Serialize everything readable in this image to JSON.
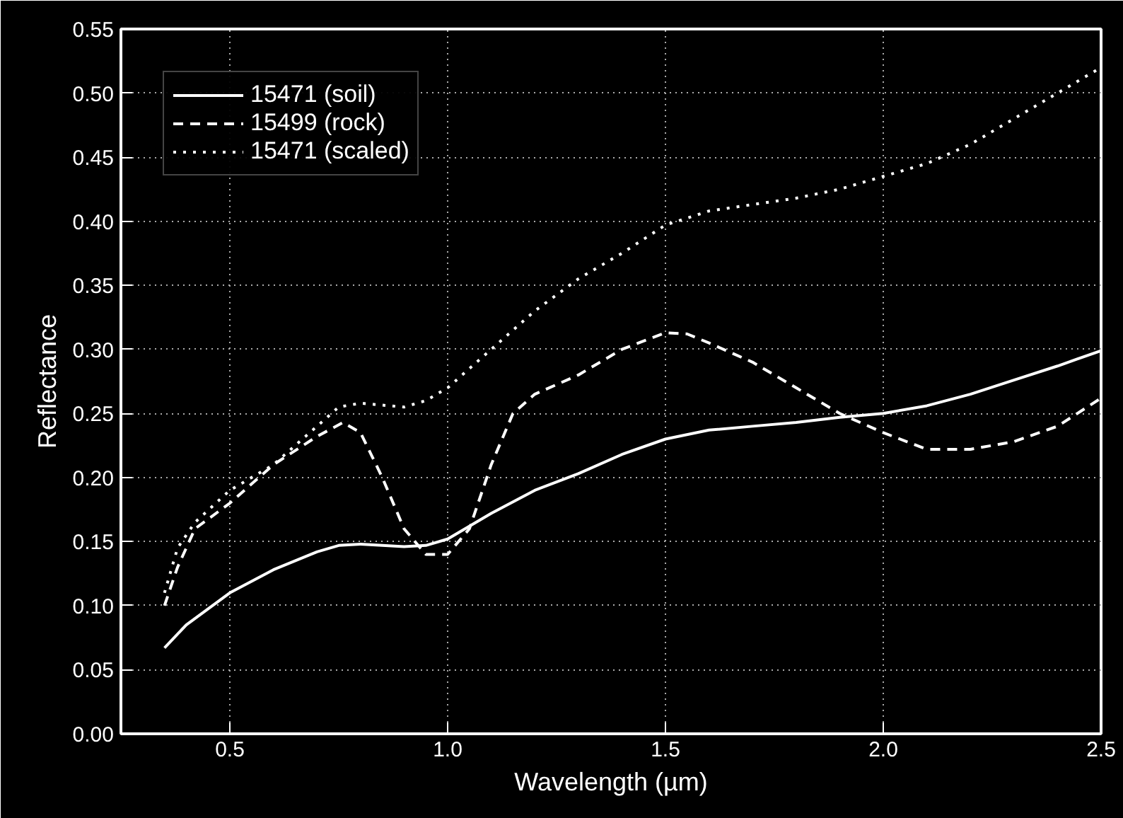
{
  "chart_data": {
    "type": "line",
    "xlabel": "Wavelength (µm)",
    "ylabel": "Reflectance",
    "xlim": [
      0.25,
      2.5
    ],
    "xticks": [
      {
        "value": 0.5,
        "label": "0.5"
      },
      {
        "value": 1.0,
        "label": "1.0"
      },
      {
        "value": 1.5,
        "label": "1.5"
      },
      {
        "value": 2.0,
        "label": "2.0"
      },
      {
        "value": 2.5,
        "label": "2.5"
      }
    ],
    "ylim": [
      0,
      0.55
    ],
    "yticks": [
      {
        "value": 0,
        "label": "0.00"
      },
      {
        "value": 0.05,
        "label": "0.05"
      },
      {
        "value": 0.1,
        "label": "0.10"
      },
      {
        "value": 0.15,
        "label": "0.15"
      },
      {
        "value": 0.2,
        "label": "0.20"
      },
      {
        "value": 0.25,
        "label": "0.25"
      },
      {
        "value": 0.3,
        "label": "0.30"
      },
      {
        "value": 0.35,
        "label": "0.35"
      },
      {
        "value": 0.4,
        "label": "0.40"
      },
      {
        "value": 0.45,
        "label": "0.45"
      },
      {
        "value": 0.5,
        "label": "0.50"
      },
      {
        "value": 0.55,
        "label": "0.55"
      }
    ],
    "grid": true,
    "legend": "top left",
    "series": [
      {
        "name": "15471 (soil)",
        "color": "#ffffff",
        "line_style": "solid",
        "x": [
          0.35,
          0.4,
          0.5,
          0.6,
          0.7,
          0.75,
          0.8,
          0.9,
          0.95,
          1.0,
          1.1,
          1.2,
          1.3,
          1.4,
          1.5,
          1.6,
          1.7,
          1.8,
          1.9,
          2.0,
          2.1,
          2.2,
          2.3,
          2.4,
          2.5
        ],
        "values": [
          0.067,
          0.085,
          0.11,
          0.128,
          0.142,
          0.147,
          0.148,
          0.146,
          0.147,
          0.152,
          0.172,
          0.19,
          0.203,
          0.218,
          0.23,
          0.237,
          0.24,
          0.243,
          0.247,
          0.25,
          0.256,
          0.265,
          0.276,
          0.287,
          0.299
        ]
      },
      {
        "name": "15499 (rock)",
        "color": "#ffffff",
        "line_style": "dashed",
        "x": [
          0.35,
          0.38,
          0.42,
          0.5,
          0.6,
          0.7,
          0.76,
          0.8,
          0.85,
          0.9,
          0.95,
          1.0,
          1.05,
          1.1,
          1.15,
          1.2,
          1.3,
          1.4,
          1.5,
          1.55,
          1.6,
          1.7,
          1.8,
          1.9,
          2.0,
          2.1,
          2.2,
          2.3,
          2.4,
          2.5
        ],
        "values": [
          0.1,
          0.13,
          0.16,
          0.18,
          0.21,
          0.232,
          0.243,
          0.235,
          0.2,
          0.16,
          0.14,
          0.14,
          0.16,
          0.21,
          0.25,
          0.265,
          0.28,
          0.3,
          0.313,
          0.312,
          0.305,
          0.29,
          0.27,
          0.25,
          0.235,
          0.222,
          0.222,
          0.228,
          0.24,
          0.262
        ]
      },
      {
        "name": "15471 (scaled)",
        "color": "#ffffff",
        "line_style": "dotted",
        "x": [
          0.35,
          0.38,
          0.42,
          0.5,
          0.6,
          0.7,
          0.75,
          0.8,
          0.9,
          0.95,
          1.0,
          1.1,
          1.2,
          1.3,
          1.4,
          1.5,
          1.6,
          1.7,
          1.8,
          1.9,
          2.0,
          2.1,
          2.2,
          2.3,
          2.4,
          2.5
        ],
        "values": [
          0.11,
          0.145,
          0.165,
          0.19,
          0.21,
          0.24,
          0.255,
          0.258,
          0.255,
          0.26,
          0.27,
          0.3,
          0.33,
          0.355,
          0.375,
          0.397,
          0.408,
          0.413,
          0.418,
          0.425,
          0.435,
          0.445,
          0.46,
          0.48,
          0.5,
          0.52
        ]
      }
    ]
  }
}
